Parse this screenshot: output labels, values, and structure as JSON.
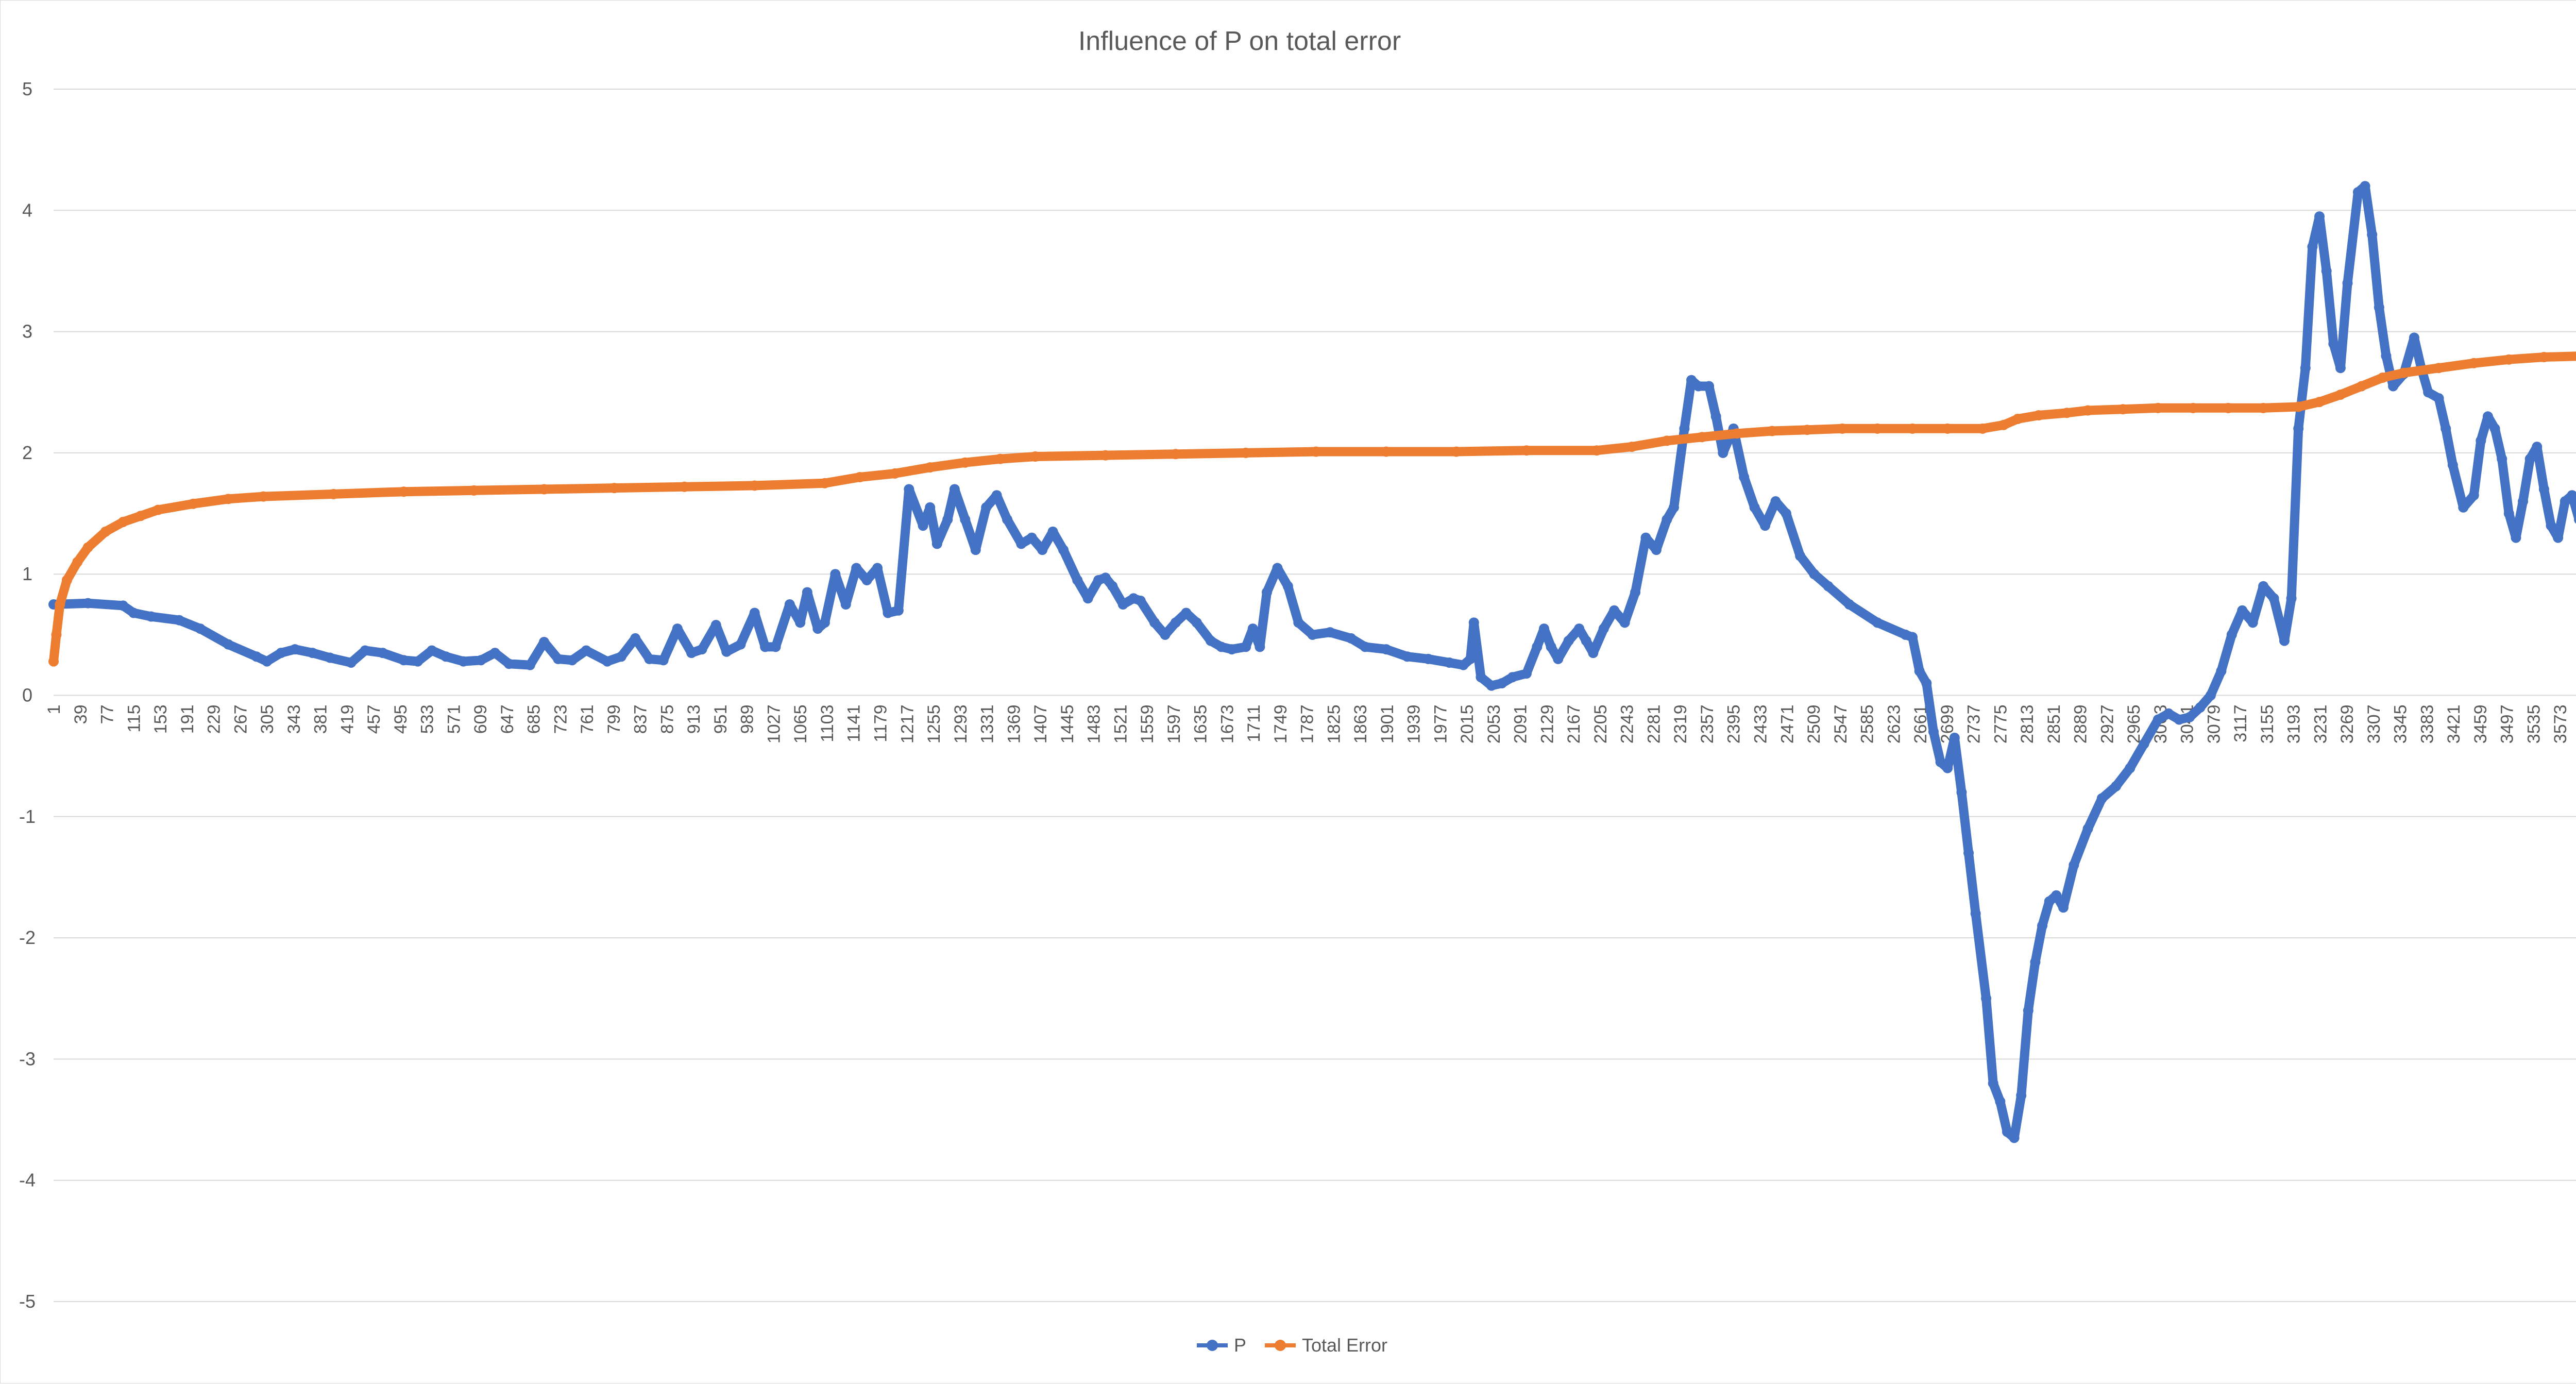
{
  "chart_data": {
    "type": "line",
    "title": "Influence of P on total error",
    "xlabel": "",
    "ylabel": "",
    "ylim": [
      -5,
      5
    ],
    "yticks": [
      5,
      4,
      3,
      2,
      1,
      0,
      -1,
      -2,
      -3,
      -4,
      -5
    ],
    "x_range": [
      1,
      3611
    ],
    "x_tick_step": 38,
    "grid": "horizontal",
    "legend": "bottom-center",
    "series": [
      {
        "name": "P",
        "color": "#4472C4",
        "points": [
          [
            1,
            0.75
          ],
          [
            50,
            0.76
          ],
          [
            100,
            0.74
          ],
          [
            115,
            0.68
          ],
          [
            140,
            0.65
          ],
          [
            180,
            0.62
          ],
          [
            210,
            0.55
          ],
          [
            250,
            0.42
          ],
          [
            290,
            0.32
          ],
          [
            305,
            0.28
          ],
          [
            325,
            0.35
          ],
          [
            345,
            0.38
          ],
          [
            370,
            0.35
          ],
          [
            395,
            0.31
          ],
          [
            425,
            0.27
          ],
          [
            445,
            0.37
          ],
          [
            470,
            0.35
          ],
          [
            500,
            0.29
          ],
          [
            520,
            0.28
          ],
          [
            540,
            0.37
          ],
          [
            560,
            0.32
          ],
          [
            585,
            0.28
          ],
          [
            610,
            0.29
          ],
          [
            630,
            0.35
          ],
          [
            650,
            0.26
          ],
          [
            680,
            0.25
          ],
          [
            700,
            0.44
          ],
          [
            720,
            0.3
          ],
          [
            740,
            0.29
          ],
          [
            760,
            0.37
          ],
          [
            790,
            0.28
          ],
          [
            810,
            0.32
          ],
          [
            830,
            0.47
          ],
          [
            850,
            0.3
          ],
          [
            870,
            0.29
          ],
          [
            890,
            0.55
          ],
          [
            910,
            0.35
          ],
          [
            925,
            0.38
          ],
          [
            945,
            0.58
          ],
          [
            960,
            0.36
          ],
          [
            980,
            0.42
          ],
          [
            1000,
            0.68
          ],
          [
            1015,
            0.4
          ],
          [
            1030,
            0.4
          ],
          [
            1050,
            0.75
          ],
          [
            1065,
            0.6
          ],
          [
            1075,
            0.85
          ],
          [
            1090,
            0.55
          ],
          [
            1100,
            0.6
          ],
          [
            1115,
            1.0
          ],
          [
            1130,
            0.75
          ],
          [
            1145,
            1.05
          ],
          [
            1160,
            0.95
          ],
          [
            1175,
            1.05
          ],
          [
            1190,
            0.68
          ],
          [
            1205,
            0.7
          ],
          [
            1220,
            1.7
          ],
          [
            1240,
            1.4
          ],
          [
            1250,
            1.55
          ],
          [
            1260,
            1.25
          ],
          [
            1275,
            1.45
          ],
          [
            1285,
            1.7
          ],
          [
            1300,
            1.45
          ],
          [
            1315,
            1.2
          ],
          [
            1330,
            1.55
          ],
          [
            1345,
            1.65
          ],
          [
            1360,
            1.45
          ],
          [
            1380,
            1.25
          ],
          [
            1395,
            1.3
          ],
          [
            1410,
            1.2
          ],
          [
            1425,
            1.35
          ],
          [
            1440,
            1.2
          ],
          [
            1460,
            0.95
          ],
          [
            1475,
            0.8
          ],
          [
            1490,
            0.95
          ],
          [
            1500,
            0.97
          ],
          [
            1510,
            0.9
          ],
          [
            1525,
            0.75
          ],
          [
            1540,
            0.8
          ],
          [
            1550,
            0.78
          ],
          [
            1570,
            0.6
          ],
          [
            1585,
            0.5
          ],
          [
            1600,
            0.6
          ],
          [
            1615,
            0.68
          ],
          [
            1630,
            0.6
          ],
          [
            1650,
            0.45
          ],
          [
            1665,
            0.4
          ],
          [
            1680,
            0.38
          ],
          [
            1700,
            0.4
          ],
          [
            1710,
            0.55
          ],
          [
            1720,
            0.4
          ],
          [
            1730,
            0.85
          ],
          [
            1745,
            1.05
          ],
          [
            1760,
            0.9
          ],
          [
            1775,
            0.6
          ],
          [
            1795,
            0.5
          ],
          [
            1820,
            0.52
          ],
          [
            1850,
            0.47
          ],
          [
            1870,
            0.4
          ],
          [
            1900,
            0.38
          ],
          [
            1930,
            0.32
          ],
          [
            1960,
            0.3
          ],
          [
            1990,
            0.27
          ],
          [
            2010,
            0.25
          ],
          [
            2020,
            0.3
          ],
          [
            2025,
            0.6
          ],
          [
            2035,
            0.15
          ],
          [
            2050,
            0.08
          ],
          [
            2065,
            0.1
          ],
          [
            2080,
            0.15
          ],
          [
            2100,
            0.18
          ],
          [
            2115,
            0.4
          ],
          [
            2125,
            0.55
          ],
          [
            2135,
            0.4
          ],
          [
            2145,
            0.3
          ],
          [
            2160,
            0.45
          ],
          [
            2175,
            0.55
          ],
          [
            2185,
            0.45
          ],
          [
            2195,
            0.35
          ],
          [
            2210,
            0.55
          ],
          [
            2225,
            0.7
          ],
          [
            2240,
            0.6
          ],
          [
            2255,
            0.85
          ],
          [
            2270,
            1.3
          ],
          [
            2285,
            1.2
          ],
          [
            2300,
            1.45
          ],
          [
            2310,
            1.55
          ],
          [
            2325,
            2.2
          ],
          [
            2335,
            2.6
          ],
          [
            2345,
            2.55
          ],
          [
            2360,
            2.55
          ],
          [
            2370,
            2.3
          ],
          [
            2380,
            2.0
          ],
          [
            2395,
            2.2
          ],
          [
            2410,
            1.8
          ],
          [
            2425,
            1.55
          ],
          [
            2440,
            1.4
          ],
          [
            2455,
            1.6
          ],
          [
            2470,
            1.5
          ],
          [
            2490,
            1.15
          ],
          [
            2510,
            1.0
          ],
          [
            2530,
            0.9
          ],
          [
            2560,
            0.75
          ],
          [
            2600,
            0.6
          ],
          [
            2640,
            0.5
          ],
          [
            2650,
            0.48
          ],
          [
            2660,
            0.2
          ],
          [
            2670,
            0.1
          ],
          [
            2680,
            -0.3
          ],
          [
            2690,
            -0.55
          ],
          [
            2700,
            -0.6
          ],
          [
            2710,
            -0.35
          ],
          [
            2720,
            -0.8
          ],
          [
            2730,
            -1.3
          ],
          [
            2740,
            -1.8
          ],
          [
            2755,
            -2.5
          ],
          [
            2765,
            -3.2
          ],
          [
            2775,
            -3.35
          ],
          [
            2785,
            -3.6
          ],
          [
            2795,
            -3.65
          ],
          [
            2805,
            -3.3
          ],
          [
            2815,
            -2.6
          ],
          [
            2825,
            -2.2
          ],
          [
            2835,
            -1.9
          ],
          [
            2845,
            -1.7
          ],
          [
            2855,
            -1.65
          ],
          [
            2865,
            -1.75
          ],
          [
            2880,
            -1.4
          ],
          [
            2900,
            -1.1
          ],
          [
            2920,
            -0.85
          ],
          [
            2940,
            -0.75
          ],
          [
            2960,
            -0.6
          ],
          [
            2980,
            -0.4
          ],
          [
            3000,
            -0.2
          ],
          [
            3015,
            -0.15
          ],
          [
            3030,
            -0.2
          ],
          [
            3045,
            -0.18
          ],
          [
            3060,
            -0.1
          ],
          [
            3075,
            0.0
          ],
          [
            3090,
            0.2
          ],
          [
            3105,
            0.5
          ],
          [
            3120,
            0.7
          ],
          [
            3135,
            0.6
          ],
          [
            3150,
            0.9
          ],
          [
            3165,
            0.8
          ],
          [
            3180,
            0.45
          ],
          [
            3190,
            0.8
          ],
          [
            3200,
            2.2
          ],
          [
            3210,
            2.7
          ],
          [
            3220,
            3.7
          ],
          [
            3230,
            3.95
          ],
          [
            3240,
            3.5
          ],
          [
            3250,
            2.9
          ],
          [
            3260,
            2.7
          ],
          [
            3270,
            3.4
          ],
          [
            3285,
            4.15
          ],
          [
            3295,
            4.2
          ],
          [
            3305,
            3.8
          ],
          [
            3315,
            3.2
          ],
          [
            3325,
            2.8
          ],
          [
            3335,
            2.55
          ],
          [
            3350,
            2.65
          ],
          [
            3365,
            2.95
          ],
          [
            3375,
            2.7
          ],
          [
            3385,
            2.5
          ],
          [
            3400,
            2.45
          ],
          [
            3410,
            2.2
          ],
          [
            3420,
            1.9
          ],
          [
            3435,
            1.55
          ],
          [
            3450,
            1.65
          ],
          [
            3460,
            2.1
          ],
          [
            3470,
            2.3
          ],
          [
            3480,
            2.2
          ],
          [
            3490,
            1.95
          ],
          [
            3500,
            1.5
          ],
          [
            3510,
            1.3
          ],
          [
            3520,
            1.6
          ],
          [
            3530,
            1.95
          ],
          [
            3540,
            2.05
          ],
          [
            3550,
            1.7
          ],
          [
            3560,
            1.4
          ],
          [
            3570,
            1.3
          ],
          [
            3580,
            1.6
          ],
          [
            3590,
            1.65
          ],
          [
            3600,
            1.45
          ],
          [
            3611,
            1.4
          ]
        ]
      },
      {
        "name": "Total Error",
        "color": "#ED7D31",
        "points": [
          [
            1,
            0.28
          ],
          [
            5,
            0.5
          ],
          [
            10,
            0.75
          ],
          [
            20,
            0.95
          ],
          [
            35,
            1.1
          ],
          [
            50,
            1.22
          ],
          [
            75,
            1.35
          ],
          [
            100,
            1.43
          ],
          [
            125,
            1.48
          ],
          [
            150,
            1.53
          ],
          [
            200,
            1.58
          ],
          [
            250,
            1.62
          ],
          [
            300,
            1.64
          ],
          [
            400,
            1.66
          ],
          [
            500,
            1.68
          ],
          [
            600,
            1.69
          ],
          [
            700,
            1.7
          ],
          [
            800,
            1.71
          ],
          [
            900,
            1.72
          ],
          [
            1000,
            1.73
          ],
          [
            1100,
            1.75
          ],
          [
            1150,
            1.8
          ],
          [
            1200,
            1.83
          ],
          [
            1250,
            1.88
          ],
          [
            1300,
            1.92
          ],
          [
            1350,
            1.95
          ],
          [
            1400,
            1.97
          ],
          [
            1500,
            1.98
          ],
          [
            1600,
            1.99
          ],
          [
            1700,
            2.0
          ],
          [
            1800,
            2.01
          ],
          [
            1900,
            2.01
          ],
          [
            2000,
            2.01
          ],
          [
            2100,
            2.02
          ],
          [
            2200,
            2.02
          ],
          [
            2250,
            2.05
          ],
          [
            2300,
            2.1
          ],
          [
            2350,
            2.13
          ],
          [
            2400,
            2.16
          ],
          [
            2450,
            2.18
          ],
          [
            2500,
            2.19
          ],
          [
            2550,
            2.2
          ],
          [
            2600,
            2.2
          ],
          [
            2650,
            2.2
          ],
          [
            2700,
            2.2
          ],
          [
            2750,
            2.2
          ],
          [
            2780,
            2.23
          ],
          [
            2800,
            2.28
          ],
          [
            2830,
            2.31
          ],
          [
            2870,
            2.33
          ],
          [
            2900,
            2.35
          ],
          [
            2950,
            2.36
          ],
          [
            3000,
            2.37
          ],
          [
            3050,
            2.37
          ],
          [
            3100,
            2.37
          ],
          [
            3150,
            2.37
          ],
          [
            3200,
            2.38
          ],
          [
            3230,
            2.42
          ],
          [
            3260,
            2.48
          ],
          [
            3290,
            2.55
          ],
          [
            3320,
            2.62
          ],
          [
            3350,
            2.66
          ],
          [
            3400,
            2.7
          ],
          [
            3450,
            2.74
          ],
          [
            3500,
            2.77
          ],
          [
            3550,
            2.79
          ],
          [
            3611,
            2.8
          ]
        ]
      }
    ]
  }
}
